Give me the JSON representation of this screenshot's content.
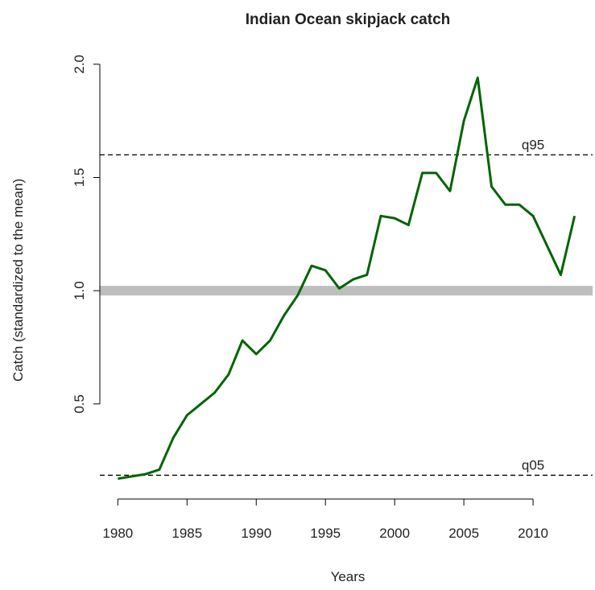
{
  "chart_data": {
    "type": "line",
    "title": "Indian Ocean skipjack catch",
    "x_label": "Years",
    "y_label": "Catch (standardized to the mean)",
    "x": [
      1980,
      1981,
      1982,
      1983,
      1984,
      1985,
      1986,
      1987,
      1988,
      1989,
      1990,
      1991,
      1992,
      1993,
      1994,
      1995,
      1996,
      1997,
      1998,
      1999,
      2000,
      2001,
      2002,
      2003,
      2004,
      2005,
      2006,
      2007,
      2008,
      2009,
      2010,
      2011,
      2012,
      2013
    ],
    "values": [
      0.17,
      0.18,
      0.19,
      0.21,
      0.35,
      0.45,
      0.5,
      0.55,
      0.63,
      0.78,
      0.72,
      0.78,
      0.89,
      0.98,
      1.11,
      1.09,
      1.01,
      1.05,
      1.07,
      1.33,
      1.32,
      1.29,
      1.52,
      1.52,
      1.44,
      1.75,
      1.94,
      1.46,
      1.38,
      1.38,
      1.33,
      1.2,
      1.07,
      1.33
    ],
    "color": "#006400",
    "xlim": [
      1978.7,
      2014.3
    ],
    "xticks": [
      1980,
      1985,
      1990,
      1995,
      2000,
      2005,
      2010
    ],
    "ylim": [
      0.08,
      2.01
    ],
    "yticks": [
      {
        "value": 0.5,
        "label": "0.5"
      },
      {
        "value": 1,
        "label": "1.0"
      },
      {
        "value": 1.5,
        "label": "1.5"
      },
      {
        "value": 2,
        "label": "2.0"
      }
    ],
    "reference_lines": [
      {
        "value": 1,
        "color": "#bebebe",
        "style": "solid"
      },
      {
        "value": 1.6,
        "label": "q95",
        "color": "#000000",
        "style": "dashed"
      },
      {
        "value": 0.185,
        "label": "q05",
        "color": "#000000",
        "style": "dashed"
      }
    ]
  }
}
